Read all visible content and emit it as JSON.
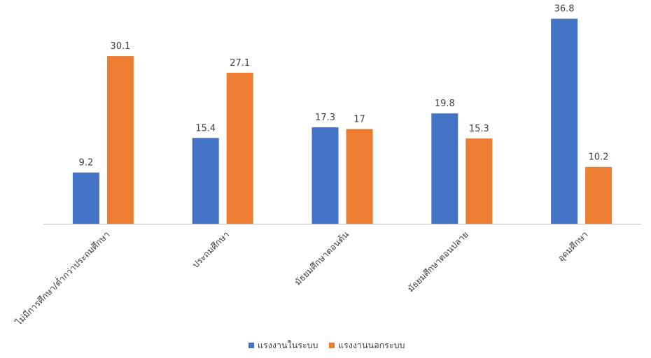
{
  "chart_data": {
    "type": "bar",
    "title": "",
    "xlabel": "",
    "ylabel": "",
    "categories": [
      "ไม่มีการศึกษา/ต่ำกว่าประถมศึกษา",
      "ประถมศึกษา",
      "มัธยมศึกษาตอนต้น",
      "มัธยมศึกษาตอนปลาย",
      "อุดมศึกษา"
    ],
    "series": [
      {
        "name": "แรงงานในระบบ",
        "color": "#4472C4",
        "values": [
          9.2,
          15.4,
          17.3,
          19.8,
          36.8
        ],
        "labels": [
          "9.2",
          "15.4",
          "17.3",
          "19.8",
          "36.8"
        ]
      },
      {
        "name": "แรงงานนอกระบบ",
        "color": "#ED7D31",
        "values": [
          30.1,
          27.1,
          17,
          15.3,
          10.2
        ],
        "labels": [
          "30.1",
          "27.1",
          "17",
          "15.3",
          "10.2"
        ]
      }
    ],
    "ylim": [
      0,
      40
    ],
    "grid": false,
    "legend_position": "bottom",
    "axis_color": "#BFBFBF"
  }
}
